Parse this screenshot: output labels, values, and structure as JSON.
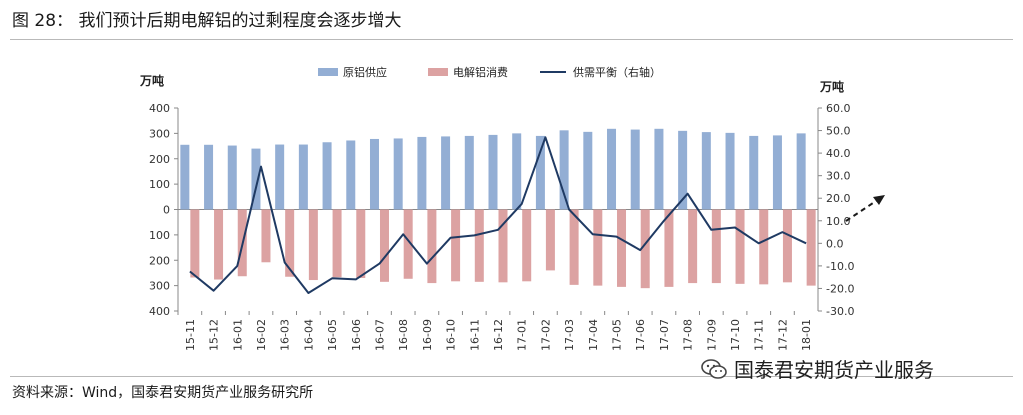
{
  "figure": {
    "title": "图 28： 我们预计后期电解铝的过剩程度会逐步增大",
    "source": "资料来源：Wind，国泰君安期货产业服务研究所",
    "watermark": "国泰君安期货产业服务"
  },
  "chart_data": {
    "type": "bar",
    "categories": [
      "15-11",
      "15-12",
      "16-01",
      "16-02",
      "16-03",
      "16-04",
      "16-05",
      "16-06",
      "16-07",
      "16-08",
      "16-09",
      "16-10",
      "16-11",
      "16-12",
      "17-01",
      "17-02",
      "17-03",
      "17-04",
      "17-05",
      "17-06",
      "17-07",
      "17-08",
      "17-09",
      "17-10",
      "17-11",
      "17-12",
      "18-01"
    ],
    "series": [
      {
        "name": "原铝供应",
        "type": "bar",
        "axis": "left",
        "color": "#93aed4",
        "values": [
          255,
          255,
          252,
          240,
          256,
          256,
          265,
          272,
          278,
          280,
          286,
          288,
          290,
          294,
          300,
          290,
          312,
          306,
          318,
          315,
          318,
          310,
          305,
          302,
          290,
          292,
          300
        ]
      },
      {
        "name": "电解铝消费",
        "type": "bar",
        "axis": "left",
        "color": "#dca2a2",
        "values": [
          -268,
          -276,
          -263,
          -208,
          -265,
          -278,
          -267,
          -270,
          -285,
          -273,
          -290,
          -283,
          -285,
          -287,
          -283,
          -240,
          -297,
          -300,
          -305,
          -310,
          -305,
          -290,
          -290,
          -293,
          -295,
          -287,
          -300
        ]
      },
      {
        "name": "供需平衡（右轴）",
        "type": "line",
        "axis": "right",
        "color": "#1f3a63",
        "values": [
          -12.5,
          -21,
          -10,
          34,
          -8.5,
          -22,
          -15.5,
          -16,
          -9,
          4,
          -9,
          2.5,
          3.5,
          6,
          17.5,
          47,
          15,
          4,
          3,
          -3,
          10,
          22,
          6,
          7,
          0,
          5,
          0
        ]
      }
    ],
    "y_left": {
      "label": "万吨",
      "min": -400,
      "max": 400,
      "step": 100,
      "tick_labels": [
        "400",
        "300",
        "200",
        "100",
        "0",
        "100",
        "200",
        "300",
        "400"
      ]
    },
    "y_right": {
      "label": "万吨",
      "min": -30,
      "max": 60,
      "step": 10,
      "tick_labels": [
        "60.0",
        "50.0",
        "40.0",
        "30.0",
        "20.0",
        "10.0",
        "0.0",
        "-10.0",
        "-20.0",
        "-30.0"
      ]
    },
    "annotation": "dashed-trend-arrow",
    "grid": false,
    "legend_position": "top"
  }
}
